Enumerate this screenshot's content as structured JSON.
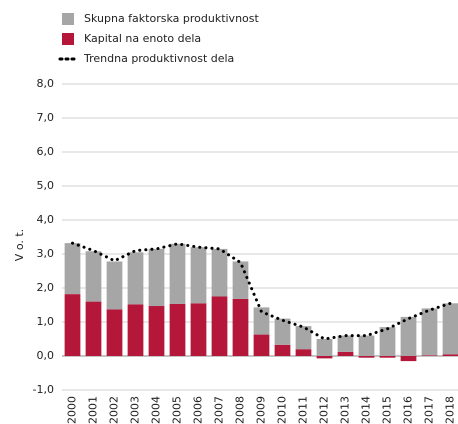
{
  "chart_data": {
    "type": "bar",
    "stacked": true,
    "y_label": "V o. t.",
    "categories": [
      "2000",
      "2001",
      "2002",
      "2003",
      "2004",
      "2005",
      "2006",
      "2007",
      "2008",
      "2009",
      "2010",
      "2011",
      "2012",
      "2013",
      "2014",
      "2015",
      "2016",
      "2017",
      "2018"
    ],
    "series": [
      {
        "name": "Skupna faktorska produktivnost",
        "color": "#a6a6a6",
        "values": [
          1.5,
          1.48,
          1.41,
          1.53,
          1.68,
          1.77,
          1.65,
          1.4,
          1.1,
          0.8,
          0.77,
          0.68,
          0.5,
          0.48,
          0.6,
          0.85,
          1.15,
          1.38,
          1.5
        ]
      },
      {
        "name": "Kapital na enoto dela",
        "color": "#b5173b",
        "values": [
          1.82,
          1.6,
          1.37,
          1.52,
          1.47,
          1.53,
          1.55,
          1.75,
          1.68,
          0.63,
          0.33,
          0.2,
          -0.07,
          0.12,
          -0.05,
          -0.05,
          -0.15,
          0.02,
          0.05
        ]
      },
      {
        "name": "Trendna produktivnost dela",
        "color": "#000000",
        "type": "line",
        "values": [
          3.32,
          3.1,
          2.8,
          3.1,
          3.15,
          3.3,
          3.2,
          3.15,
          2.75,
          1.3,
          1.05,
          0.85,
          0.5,
          0.6,
          0.6,
          0.8,
          1.1,
          1.35,
          1.55
        ]
      }
    ],
    "ylim": [
      -1,
      8
    ],
    "yticks": [
      {
        "value": -1,
        "label": "-1,0"
      },
      {
        "value": 0,
        "label": "0,0"
      },
      {
        "value": 1,
        "label": "1,0"
      },
      {
        "value": 2,
        "label": "2,0"
      },
      {
        "value": 3,
        "label": "3,0"
      },
      {
        "value": 4,
        "label": "4,0"
      },
      {
        "value": 5,
        "label": "5,0"
      },
      {
        "value": 6,
        "label": "6,0"
      },
      {
        "value": 7,
        "label": "7,0"
      },
      {
        "value": 8,
        "label": "8,0"
      }
    ],
    "grid": true
  }
}
